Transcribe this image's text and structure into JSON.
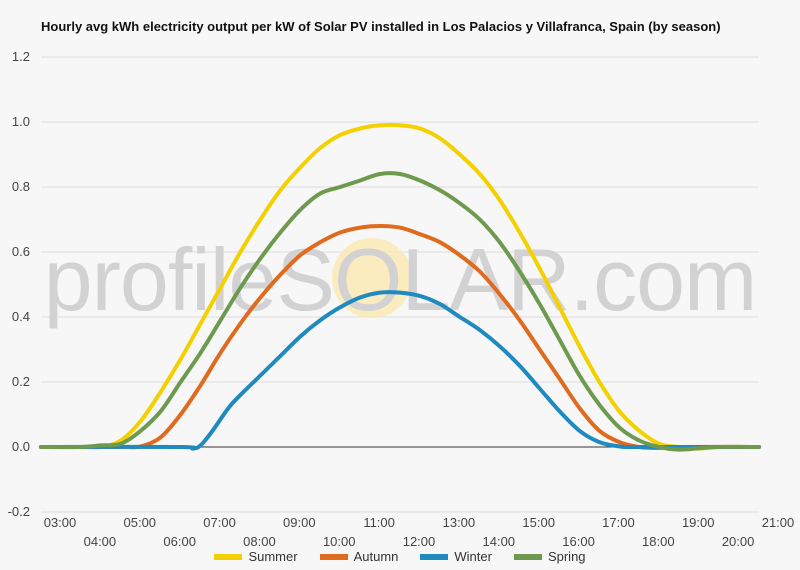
{
  "chart_data": {
    "type": "line",
    "title": "Hourly avg kWh electricity output per kW of Solar PV installed in Los Palacios y Villafranca, Spain (by season)",
    "xlabel": "",
    "ylabel": "",
    "ylim": [
      -0.2,
      1.2
    ],
    "yticks": [
      "-0.2",
      "0.0",
      "0.2",
      "0.4",
      "0.6",
      "0.8",
      "1.0",
      "1.2"
    ],
    "xlim": [
      3,
      21
    ],
    "xticks": [
      "03:00",
      "04:00",
      "05:00",
      "06:00",
      "07:00",
      "08:00",
      "09:00",
      "10:00",
      "11:00",
      "12:00",
      "13:00",
      "14:00",
      "15:00",
      "16:00",
      "17:00",
      "18:00",
      "19:00",
      "20:00",
      "21:00"
    ],
    "grid": "horizontal",
    "legend_position": "bottom",
    "watermark": "profileSOLAR.com",
    "series": [
      {
        "name": "Summer",
        "color": "#f5d000",
        "points": [
          [
            3,
            0
          ],
          [
            4,
            0
          ],
          [
            4.5,
            0
          ],
          [
            5,
            0.02
          ],
          [
            5.5,
            0.08
          ],
          [
            6,
            0.17
          ],
          [
            6.5,
            0.27
          ],
          [
            7,
            0.38
          ],
          [
            7.5,
            0.49
          ],
          [
            8,
            0.6
          ],
          [
            8.5,
            0.7
          ],
          [
            9,
            0.79
          ],
          [
            9.5,
            0.86
          ],
          [
            10,
            0.92
          ],
          [
            10.5,
            0.96
          ],
          [
            11,
            0.98
          ],
          [
            11.5,
            0.99
          ],
          [
            12,
            0.99
          ],
          [
            12.5,
            0.98
          ],
          [
            13,
            0.95
          ],
          [
            13.5,
            0.9
          ],
          [
            14,
            0.84
          ],
          [
            14.5,
            0.76
          ],
          [
            15,
            0.66
          ],
          [
            15.5,
            0.55
          ],
          [
            16,
            0.43
          ],
          [
            16.5,
            0.31
          ],
          [
            17,
            0.2
          ],
          [
            17.5,
            0.11
          ],
          [
            18,
            0.05
          ],
          [
            18.5,
            0.01
          ],
          [
            19,
            0
          ],
          [
            19.5,
            -0.005
          ],
          [
            20,
            0
          ],
          [
            21,
            0
          ]
        ]
      },
      {
        "name": "Autumn",
        "color": "#e06b1f",
        "points": [
          [
            3,
            0
          ],
          [
            5,
            0
          ],
          [
            5.5,
            0.002
          ],
          [
            6,
            0.03
          ],
          [
            6.5,
            0.1
          ],
          [
            7,
            0.19
          ],
          [
            7.5,
            0.29
          ],
          [
            8,
            0.38
          ],
          [
            8.5,
            0.46
          ],
          [
            9,
            0.53
          ],
          [
            9.5,
            0.59
          ],
          [
            10,
            0.63
          ],
          [
            10.5,
            0.66
          ],
          [
            11,
            0.675
          ],
          [
            11.5,
            0.68
          ],
          [
            12,
            0.675
          ],
          [
            12.5,
            0.655
          ],
          [
            13,
            0.63
          ],
          [
            13.5,
            0.59
          ],
          [
            14,
            0.54
          ],
          [
            14.5,
            0.47
          ],
          [
            15,
            0.39
          ],
          [
            15.5,
            0.3
          ],
          [
            16,
            0.21
          ],
          [
            16.5,
            0.12
          ],
          [
            17,
            0.05
          ],
          [
            17.5,
            0.015
          ],
          [
            18,
            0
          ],
          [
            18.5,
            -0.003
          ],
          [
            19,
            0
          ],
          [
            21,
            0
          ]
        ]
      },
      {
        "name": "Winter",
        "color": "#1f8ac0",
        "points": [
          [
            3,
            0
          ],
          [
            6.5,
            0
          ],
          [
            6.8,
            -0.005
          ],
          [
            7,
            0.005
          ],
          [
            7.3,
            0.05
          ],
          [
            7.7,
            0.12
          ],
          [
            8,
            0.16
          ],
          [
            8.5,
            0.22
          ],
          [
            9,
            0.28
          ],
          [
            9.5,
            0.34
          ],
          [
            10,
            0.39
          ],
          [
            10.5,
            0.43
          ],
          [
            11,
            0.46
          ],
          [
            11.5,
            0.475
          ],
          [
            12,
            0.475
          ],
          [
            12.5,
            0.465
          ],
          [
            13,
            0.44
          ],
          [
            13.5,
            0.4
          ],
          [
            14,
            0.36
          ],
          [
            14.5,
            0.31
          ],
          [
            15,
            0.25
          ],
          [
            15.5,
            0.18
          ],
          [
            16,
            0.11
          ],
          [
            16.5,
            0.05
          ],
          [
            17,
            0.015
          ],
          [
            17.5,
            0.002
          ],
          [
            18,
            0
          ],
          [
            21,
            0
          ]
        ]
      },
      {
        "name": "Spring",
        "color": "#6e9a50",
        "points": [
          [
            3,
            0
          ],
          [
            4,
            0
          ],
          [
            4.5,
            0.005
          ],
          [
            5,
            0.01
          ],
          [
            5.5,
            0.05
          ],
          [
            6,
            0.11
          ],
          [
            6.5,
            0.2
          ],
          [
            7,
            0.29
          ],
          [
            7.5,
            0.39
          ],
          [
            8,
            0.49
          ],
          [
            8.5,
            0.58
          ],
          [
            9,
            0.66
          ],
          [
            9.5,
            0.73
          ],
          [
            10,
            0.78
          ],
          [
            10.5,
            0.8
          ],
          [
            11,
            0.82
          ],
          [
            11.5,
            0.84
          ],
          [
            12,
            0.84
          ],
          [
            12.5,
            0.82
          ],
          [
            13,
            0.79
          ],
          [
            13.5,
            0.75
          ],
          [
            14,
            0.7
          ],
          [
            14.5,
            0.63
          ],
          [
            15,
            0.54
          ],
          [
            15.5,
            0.44
          ],
          [
            16,
            0.33
          ],
          [
            16.5,
            0.22
          ],
          [
            17,
            0.13
          ],
          [
            17.5,
            0.06
          ],
          [
            18,
            0.02
          ],
          [
            18.5,
            0
          ],
          [
            19,
            -0.008
          ],
          [
            19.5,
            -0.004
          ],
          [
            20,
            0
          ],
          [
            21,
            0
          ]
        ]
      }
    ]
  }
}
